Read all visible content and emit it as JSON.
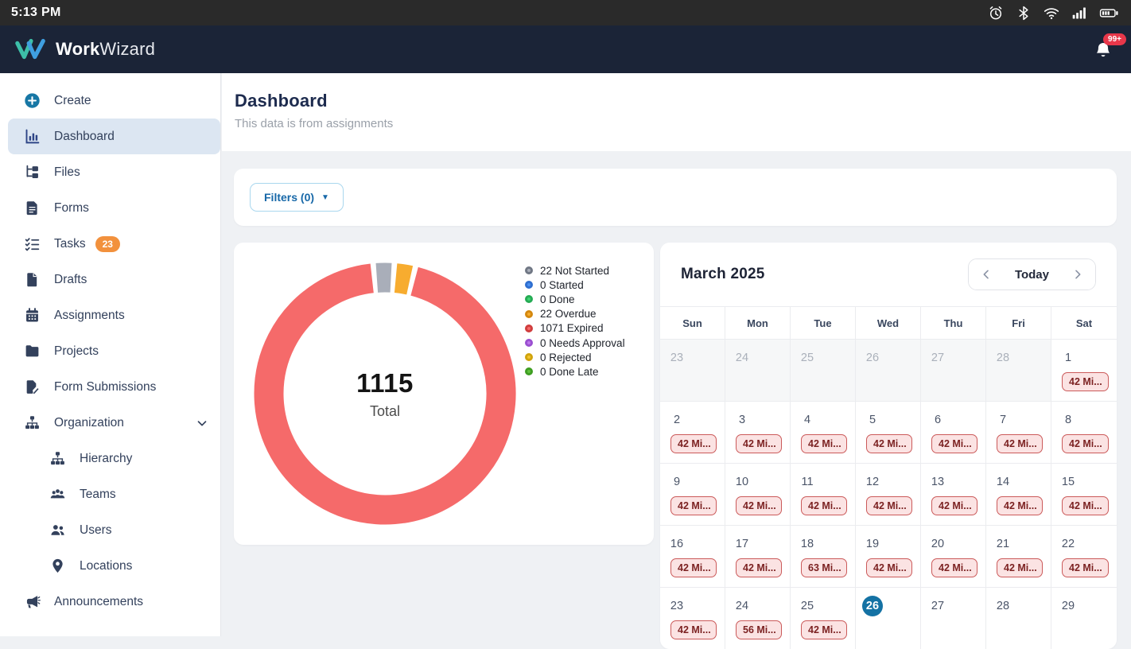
{
  "status_bar": {
    "time": "5:13 PM",
    "icons": [
      "alarm-icon",
      "bluetooth-icon",
      "wifi-icon",
      "signal-icon",
      "battery-icon"
    ]
  },
  "app_header": {
    "brand_bold": "Work",
    "brand_light": "Wizard",
    "notification_badge": "99+"
  },
  "sidebar": {
    "items": [
      {
        "id": "create",
        "icon": "plus-circle-icon",
        "label": "Create"
      },
      {
        "id": "dashboard",
        "icon": "bar-chart-icon",
        "label": "Dashboard",
        "selected": true
      },
      {
        "id": "files",
        "icon": "folder-tree-icon",
        "label": "Files"
      },
      {
        "id": "forms",
        "icon": "form-doc-icon",
        "label": "Forms"
      },
      {
        "id": "tasks",
        "icon": "checklist-icon",
        "label": "Tasks",
        "badge": "23"
      },
      {
        "id": "drafts",
        "icon": "file-icon",
        "label": "Drafts"
      },
      {
        "id": "assignments",
        "icon": "calendar-icon",
        "label": "Assignments"
      },
      {
        "id": "projects",
        "icon": "folder-icon",
        "label": "Projects"
      },
      {
        "id": "form-submissions",
        "icon": "doc-edit-icon",
        "label": "Form Submissions"
      },
      {
        "id": "organization",
        "icon": "org-chart-icon",
        "label": "Organization",
        "chevron": true
      },
      {
        "id": "hierarchy",
        "icon": "org-chart-icon",
        "label": "Hierarchy",
        "sub": true
      },
      {
        "id": "teams",
        "icon": "people-group-icon",
        "label": "Teams",
        "sub": true
      },
      {
        "id": "users",
        "icon": "people-icon",
        "label": "Users",
        "sub": true
      },
      {
        "id": "locations",
        "icon": "map-pin-icon",
        "label": "Locations",
        "sub": true
      },
      {
        "id": "announcements",
        "icon": "megaphone-icon",
        "label": "Announcements"
      }
    ]
  },
  "page": {
    "title": "Dashboard",
    "subtitle": "This data is from assignments"
  },
  "filters": {
    "label": "Filters (0)"
  },
  "chart_data": {
    "type": "pie",
    "variant": "donut",
    "total": "1115",
    "total_label": "Total",
    "legend_position": "right",
    "segments": [
      {
        "label": "Not Started",
        "value": 22,
        "color": "#a9aeb9",
        "border": "#707784"
      },
      {
        "label": "Started",
        "value": 0,
        "color": "#4c90f0",
        "border": "#2f6fd0"
      },
      {
        "label": "Done",
        "value": 0,
        "color": "#3fd473",
        "border": "#25ab54"
      },
      {
        "label": "Overdue",
        "value": 22,
        "color": "#f7ac2f",
        "border": "#d4880f"
      },
      {
        "label": "Expired",
        "value": 1071,
        "color": "#f56a6a",
        "border": "#d03d3d"
      },
      {
        "label": "Needs Approval",
        "value": 0,
        "color": "#bd77ea",
        "border": "#9a4fd0"
      },
      {
        "label": "Rejected",
        "value": 0,
        "color": "#f3c52f",
        "border": "#d1a40d"
      },
      {
        "label": "Done Late",
        "value": 0,
        "color": "#5fc13d",
        "border": "#3f9e22"
      }
    ]
  },
  "calendar": {
    "month_label": "March 2025",
    "today_label": "Today",
    "day_headers": [
      "Sun",
      "Mon",
      "Tue",
      "Wed",
      "Thu",
      "Fri",
      "Sat"
    ],
    "weeks": [
      [
        {
          "n": "23",
          "out": true
        },
        {
          "n": "24",
          "out": true
        },
        {
          "n": "25",
          "out": true
        },
        {
          "n": "26",
          "out": true
        },
        {
          "n": "27",
          "out": true
        },
        {
          "n": "28",
          "out": true
        },
        {
          "n": "1",
          "badge": "42 Mi..."
        }
      ],
      [
        {
          "n": "2",
          "badge": "42 Mi..."
        },
        {
          "n": "3",
          "badge": "42 Mi..."
        },
        {
          "n": "4",
          "badge": "42 Mi..."
        },
        {
          "n": "5",
          "badge": "42 Mi..."
        },
        {
          "n": "6",
          "badge": "42 Mi..."
        },
        {
          "n": "7",
          "badge": "42 Mi..."
        },
        {
          "n": "8",
          "badge": "42 Mi..."
        }
      ],
      [
        {
          "n": "9",
          "badge": "42 Mi..."
        },
        {
          "n": "10",
          "badge": "42 Mi..."
        },
        {
          "n": "11",
          "badge": "42 Mi..."
        },
        {
          "n": "12",
          "badge": "42 Mi..."
        },
        {
          "n": "13",
          "badge": "42 Mi..."
        },
        {
          "n": "14",
          "badge": "42 Mi..."
        },
        {
          "n": "15",
          "badge": "42 Mi..."
        }
      ],
      [
        {
          "n": "16",
          "badge": "42 Mi..."
        },
        {
          "n": "17",
          "badge": "42 Mi..."
        },
        {
          "n": "18",
          "badge": "63 Mi..."
        },
        {
          "n": "19",
          "badge": "42 Mi..."
        },
        {
          "n": "20",
          "badge": "42 Mi..."
        },
        {
          "n": "21",
          "badge": "42 Mi..."
        },
        {
          "n": "22",
          "badge": "42 Mi..."
        }
      ],
      [
        {
          "n": "23",
          "badge": "42 Mi..."
        },
        {
          "n": "24",
          "badge": "56 Mi..."
        },
        {
          "n": "25",
          "badge": "42 Mi..."
        },
        {
          "n": "26",
          "today": true
        },
        {
          "n": "27"
        },
        {
          "n": "28"
        },
        {
          "n": "29"
        }
      ]
    ]
  }
}
